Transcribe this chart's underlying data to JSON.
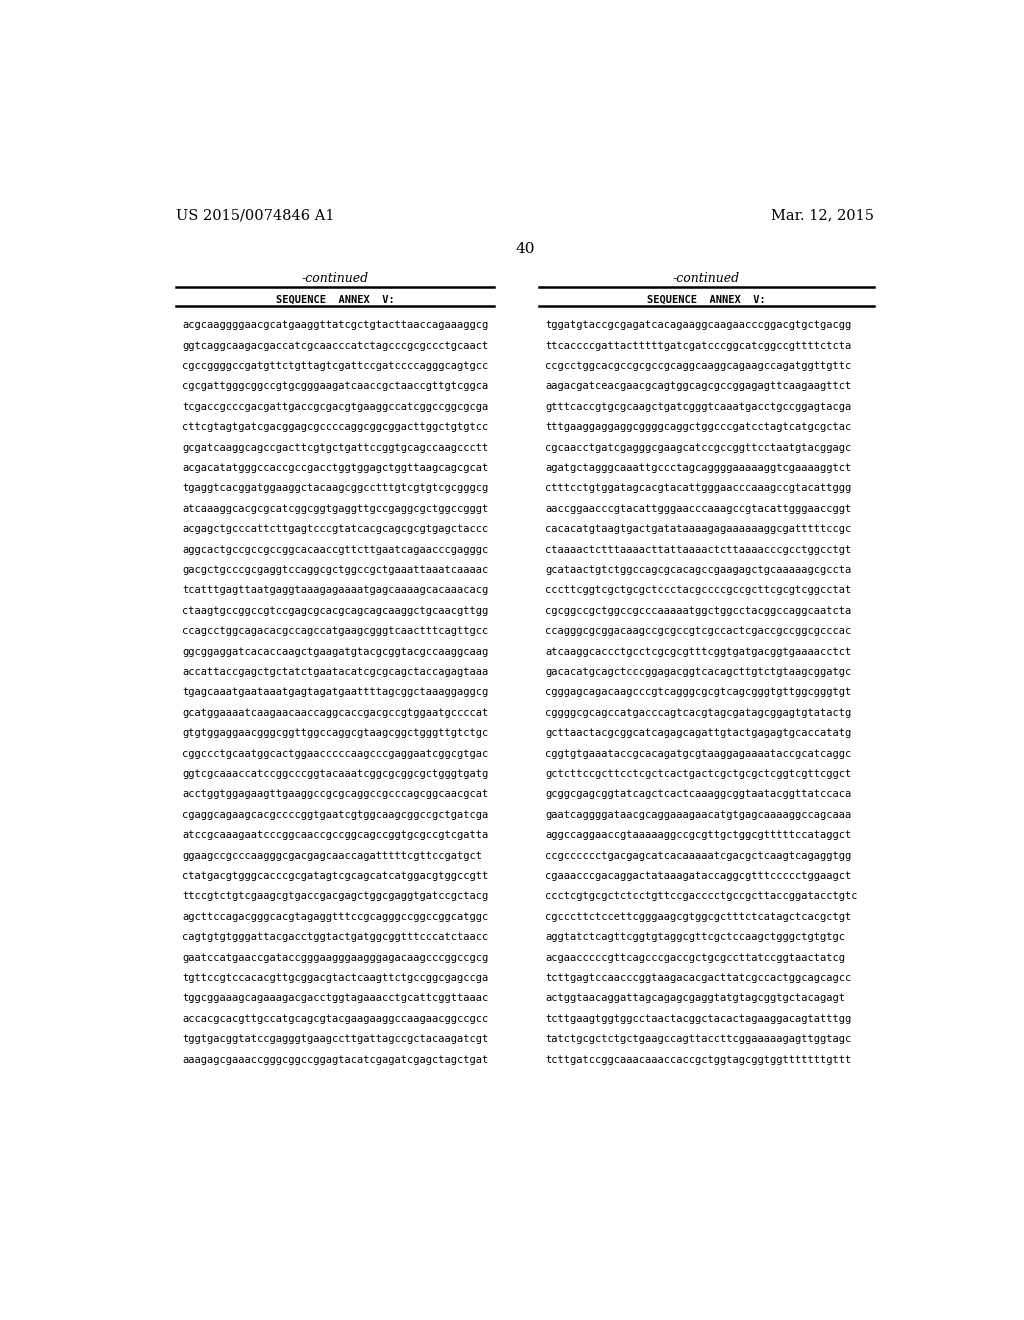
{
  "background_color": "#ffffff",
  "patent_number": "US 2015/0074846 A1",
  "patent_date": "Mar. 12, 2015",
  "page_number": "40",
  "continued_label": "-continued",
  "section_label": "SEQUENCE  ANNEX  V:",
  "left_column": [
    "acgcaaggggaacgcatgaaggttatcgctgtacttaaccagaaaggcg",
    "ggtcaggcaagacgaccatcgcaacccatctagcccgcgccctgcaact",
    "cgccggggccgatgttctgttagtcgattccgatccccagggcagtgcc",
    "cgcgattgggcggccgtgcgggaagatcaaccgctaaccgttgtcggca",
    "tcgaccgcccgacgattgaccgcgacgtgaaggccatcggccggcgcga",
    "cttcgtagtgatcgacggagcgccccaggcggcggacttggctgtgtcc",
    "gcgatcaaggcagccgacttcgtgctgattccggtgcagccaagccctt",
    "acgacatatgggccaccgccgacctggtggagctggttaagcagcgcat",
    "tgaggtcacggatggaaggctacaagcggcctttgtcgtgtcgcgggcg",
    "atcaaaggcacgcgcatcggcggtgaggttgccgaggcgctggccgggt",
    "acgagctgcccattcttgagtcccgtatcacgcagcgcgtgagctaccc",
    "aggcactgccgccgccggcacaaccgttcttgaatcagaacccgagggc",
    "gacgctgcccgcgaggtccaggcgctggccgctgaaattaaatcaaaac",
    "tcatttgagttaatgaggtaaagagaaaatgagcaaaagcacaaacacg",
    "ctaagtgccggccgtccgagcgcacgcagcagcaaggctgcaacgttgg",
    "ccagcctggcagacacgccagccatgaagcgggtcaactttcagttgcc",
    "ggcggaggatcacaccaagctgaagatgtacgcggtacgccaaggcaag",
    "accattaccgagctgctatctgaatacatcgcgcagctaccagagtaaa",
    "tgagcaaatgaataaatgagtagatgaattttagcggctaaaggaggcg",
    "gcatggaaaatcaagaacaaccaggcaccgacgccgtggaatgccccat",
    "gtgtggaggaacgggcggttggccaggcgtaagcggctgggttgtctgc",
    "cggccctgcaatggcactggaacccccaagcccgaggaatcggcgtgac",
    "ggtcgcaaaccatccggcccggtacaaatcggcgcggcgctgggtgatg",
    "acctggtggagaagttgaaggccgcgcaggccgcccagcggcaacgcat",
    "cgaggcagaagcacgccccggtgaatcgtggcaagcggccgctgatcga",
    "atccgcaaagaatcccggcaaccgccggcagccggtgcgccgtcgatta",
    "ggaagccgcccaagggcgacgagcaaccagatttttcgttccgatgct",
    "ctatgacgtgggcacccgcgatagtcgcagcatcatggacgtggccgtt",
    "ttccgtctgtcgaagcgtgaccgacgagctggcgaggtgatccgctacg",
    "agcttccagacgggcacgtagaggtttccgcagggccggccggcatggc",
    "cagtgtgtgggattacgacctggtactgatggcggtttcccatctaacc",
    "gaatccatgaaccgataccgggaagggaagggagacaagcccggccgcg",
    "tgttccgtccacacgttgcggacgtactcaagttctgccggcgagccga",
    "tggcggaaagcagaaagacgacctggtagaaacctgcattcggttaaac",
    "accacgcacgttgccatgcagcgtacgaagaaggccaagaacggccgcc",
    "tggtgacggtatccgagggtgaagccttgattagccgctacaagatcgt",
    "aaagagcgaaaccgggcggccggagtacatcgagatcgagctagctgat"
  ],
  "right_column": [
    "tggatgtaccgcgagatcacagaaggcaagaacccggacgtgctgacgg",
    "ttcaccccgattactttttgatcgatcccggcatcggccgttttctcta",
    "ccgcctggcacgccgcgccgcaggcaaggcagaagccagatggttgttc",
    "aagacgatceacgaacgcagtggcagcgccggagagttcaagaagttct",
    "gtttcaccgtgcgcaagctgatcgggtcaaatgacctgccggagtacga",
    "tttgaaggaggaggcggggcaggctggcccgatcctagtcatgcgctac",
    "cgcaacctgatcgagggcgaagcatccgccggttcctaatgtacggagc",
    "agatgctagggcaaattgccctagcaggggaaaaaggtcgaaaaggtct",
    "ctttcctgtggatagcacgtacattgggaacccaaagccgtacattggg",
    "aaccggaacccgtacattgggaacccaaagccgtacattgggaaccggt",
    "cacacatgtaagtgactgatataaaagagaaaaaaggcgatttttccgc",
    "ctaaaactctttaaaacttattaaaactcttaaaacccgcctggcctgt",
    "gcataactgtctggccagcgcacagccgaagagctgcaaaaagcgccta",
    "cccttcggtcgctgcgctccctacgccccgccgcttcgcgtcggcctat",
    "cgcggccgctggccgcccaaaaatggctggcctacggccaggcaatcta",
    "ccagggcgcggacaagccgcgccgtcgccactcgaccgccggcgcccac",
    "atcaaggcaccctgcctcgcgcgtttcggtgatgacggtgaaaacctct",
    "gacacatgcagctcccggagacggtcacagcttgtctgtaagcggatgc",
    "cgggagcagacaagcccgtcagggcgcgtcagcgggtgttggcgggtgt",
    "cggggcgcagccatgacccagtcacgtagcgatagcggagtgtatactg",
    "gcttaactacgcggcatcagagcagattgtactgagagtgcaccatatg",
    "cggtgtgaaataccgcacagatgcgtaaggagaaaataccgcatcaggc",
    "gctcttccgcttcctcgctcactgactcgctgcgctcggtcgttcggct",
    "gcggcgagcggtatcagctcactcaaaggcggtaatacggttatccaca",
    "gaatcaggggataacgcaggaaagaacatgtgagcaaaaggccagcaaa",
    "aggccaggaaccgtaaaaaggccgcgttgctggcgtttttccataggct",
    "ccgcccccctgacgagcatcacaaaaatcgacgctcaagtcagaggtgg",
    "cgaaacccgacaggactataaagataccaggcgtttccccctggaagct",
    "ccctcgtgcgctctcctgttccgacccctgccgcttaccggatacctgtc",
    "cgcccttctccettcgggaagcgtggcgctttctcatagctcacgctgt",
    "aggtatctcagttcggtgtaggcgttcgctccaagctgggctgtgtgc",
    "acgaacccccgttcagcccgaccgctgcgccttatccggtaactatcg",
    "tcttgagtccaacccggtaagacacgacttatcgccactggcagcagcc",
    "actggtaacaggattagcagagcgaggtatgtagcggtgctacagagt",
    "tcttgaagtggtggcctaactacggctacactagaaggacagtatttgg",
    "tatctgcgctctgctgaagccagttaccttcggaaaaagagttggtagc",
    "tcttgatccggcaaacaaaccaccgctggtagcggtggtttttttgttt"
  ]
}
